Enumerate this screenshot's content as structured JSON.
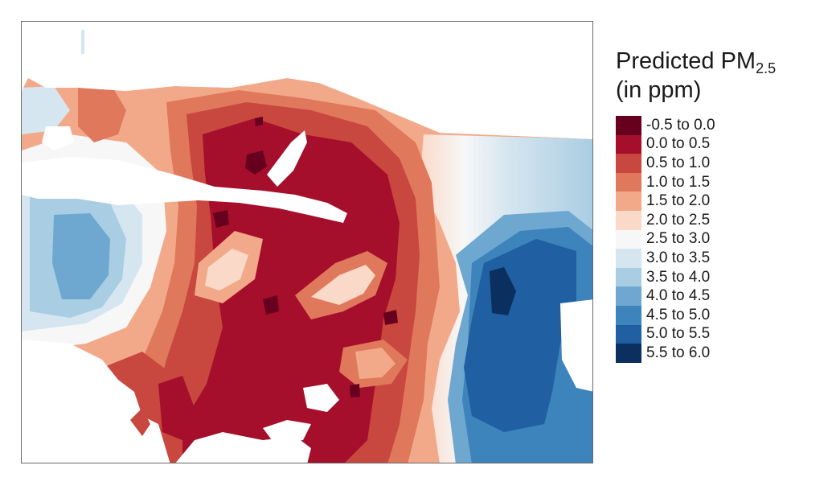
{
  "legend": {
    "title_prefix": "Predicted PM",
    "title_subscript": "2.5",
    "title_line2": "(in ppm)",
    "classes": [
      {
        "label": "-0.5 to 0.0",
        "color": "#67001f"
      },
      {
        "label": "0.0 to 0.5",
        "color": "#a50f2b"
      },
      {
        "label": "0.5 to 1.0",
        "color": "#c8473f"
      },
      {
        "label": "1.0 to 1.5",
        "color": "#e0785c"
      },
      {
        "label": "1.5 to 2.0",
        "color": "#f2a98a"
      },
      {
        "label": "2.0 to 2.5",
        "color": "#fad9c8"
      },
      {
        "label": "2.5 to 3.0",
        "color": "#f7f7f7"
      },
      {
        "label": "3.0 to 3.5",
        "color": "#d6e6f0"
      },
      {
        "label": "3.5 to 4.0",
        "color": "#a9cde3"
      },
      {
        "label": "4.0 to 4.5",
        "color": "#6ea8d0"
      },
      {
        "label": "4.5 to 5.0",
        "color": "#3d83bc"
      },
      {
        "label": "5.0 to 5.5",
        "color": "#1f5fa2"
      },
      {
        "label": "5.5 to 6.0",
        "color": "#0b2f5e"
      }
    ]
  },
  "map": {
    "water_color": "#ffffff",
    "border_color": "#6b6b6b"
  }
}
